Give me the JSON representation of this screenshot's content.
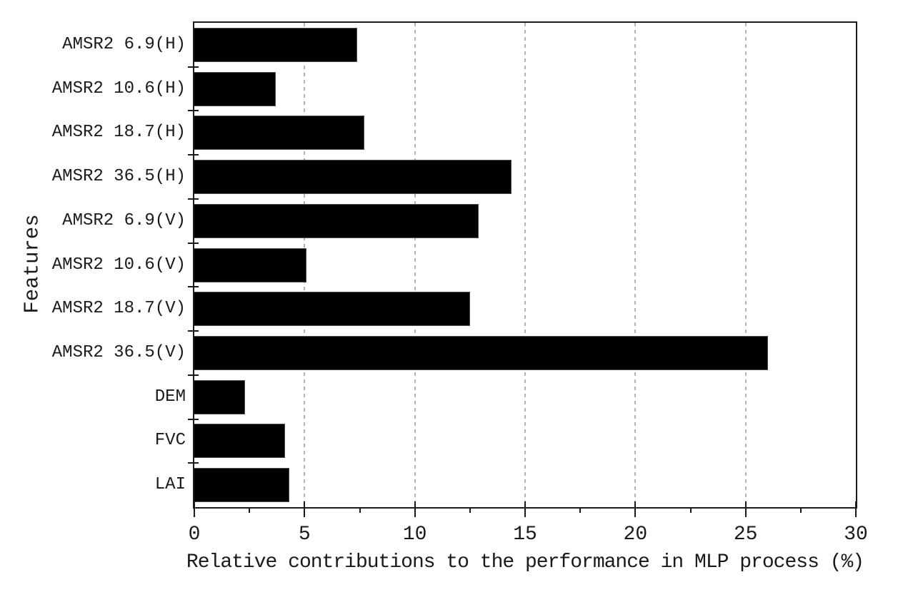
{
  "chart_data": {
    "type": "bar",
    "orientation": "horizontal",
    "title": "",
    "xlabel": "Relative contributions to the performance in MLP process (%)",
    "ylabel": "Features",
    "categories": [
      "AMSR2 6.9(H)",
      "AMSR2 10.6(H)",
      "AMSR2 18.7(H)",
      "AMSR2 36.5(H)",
      "AMSR2 6.9(V)",
      "AMSR2 10.6(V)",
      "AMSR2 18.7(V)",
      "AMSR2 36.5(V)",
      "DEM",
      "FVC",
      "LAI"
    ],
    "values": [
      7.4,
      3.7,
      7.7,
      14.4,
      12.9,
      5.1,
      12.5,
      26.0,
      2.3,
      4.1,
      4.3
    ],
    "xlim": [
      0,
      30
    ],
    "x_major_ticks": [
      0,
      5,
      10,
      15,
      20,
      25,
      30
    ],
    "x_minor_ticks": [
      2.5,
      7.5,
      12.5,
      17.5,
      22.5,
      27.5
    ],
    "gridlines_at": [
      5,
      10,
      15,
      20,
      25
    ],
    "grid": "vertical-dashed",
    "legend": "none",
    "bar_color": "#000000",
    "bar_edge_color": "#4d4d4d",
    "grid_color": "#b3b3b3",
    "axis_color": "#1a1a1a",
    "background_color": "#ffffff"
  }
}
